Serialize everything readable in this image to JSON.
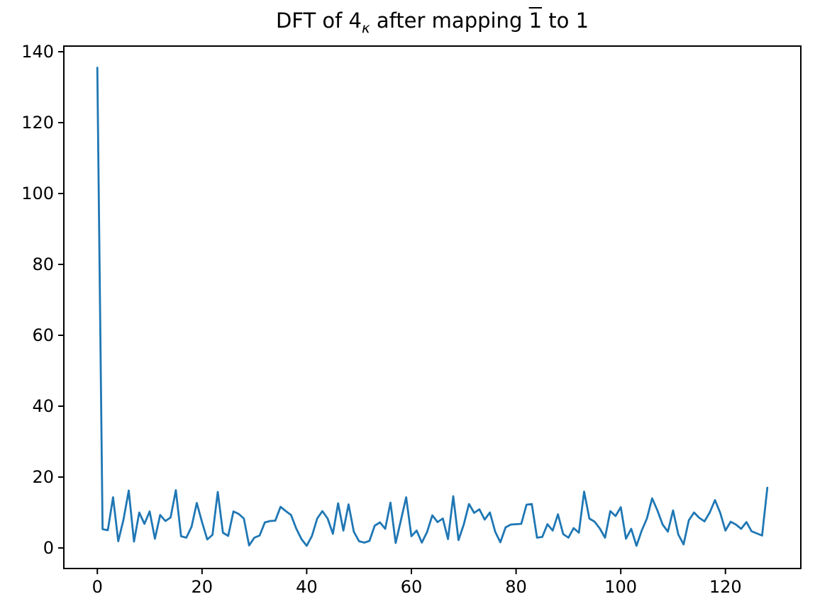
{
  "figure": {
    "title_parts": {
      "prefix": "DFT of 4",
      "subscript": "κ",
      "middle": " after mapping ",
      "overbar": "1",
      "suffix": " to 1"
    }
  },
  "chart_data": {
    "type": "line",
    "title": "DFT of 4_κ after mapping 1̄ to 1",
    "xlabel": "",
    "ylabel": "",
    "grid": false,
    "legend": null,
    "box": true,
    "line_color": "#1f77b4",
    "axis_color": "#000000",
    "background": "#ffffff",
    "x_start": 0,
    "x_step": 1,
    "x_ticks": [
      0,
      20,
      40,
      60,
      80,
      100,
      120
    ],
    "y_ticks": [
      0,
      20,
      40,
      60,
      80,
      100,
      120,
      140
    ],
    "xlim": [
      -6.4,
      134.4
    ],
    "ylim": [
      -5.8,
      141.6
    ],
    "values": [
      135.5,
      5.3,
      5.0,
      14.3,
      1.9,
      8.0,
      16.2,
      1.8,
      10.0,
      6.8,
      10.3,
      2.6,
      9.3,
      7.6,
      8.6,
      16.3,
      3.3,
      2.9,
      6.0,
      12.7,
      7.3,
      2.4,
      3.7,
      15.8,
      4.3,
      3.4,
      10.3,
      9.6,
      8.3,
      0.7,
      2.9,
      3.5,
      7.2,
      7.6,
      7.7,
      11.6,
      10.4,
      9.3,
      5.5,
      2.5,
      0.6,
      3.4,
      8.3,
      10.4,
      8.3,
      4.0,
      12.6,
      4.9,
      12.3,
      4.6,
      1.9,
      1.5,
      2.0,
      6.3,
      7.2,
      5.4,
      12.8,
      1.4,
      7.8,
      14.3,
      3.3,
      4.9,
      1.5,
      4.5,
      9.2,
      7.3,
      8.3,
      2.5,
      14.6,
      2.2,
      6.6,
      12.4,
      9.9,
      10.9,
      8.0,
      10.0,
      4.6,
      1.6,
      5.8,
      6.6,
      6.7,
      6.8,
      12.2,
      12.4,
      2.9,
      3.1,
      6.7,
      4.9,
      9.5,
      3.9,
      2.9,
      5.6,
      4.3,
      15.9,
      8.3,
      7.4,
      5.5,
      2.9,
      10.4,
      9.0,
      11.5,
      2.6,
      5.4,
      0.6,
      4.9,
      8.3,
      14.0,
      10.6,
      6.6,
      4.6,
      10.6,
      3.8,
      1.0,
      7.8,
      10.0,
      8.5,
      7.5,
      10.0,
      13.5,
      9.9,
      4.9,
      7.4,
      6.6,
      5.4,
      7.3,
      4.7,
      4.1,
      3.5,
      17.0
    ]
  }
}
